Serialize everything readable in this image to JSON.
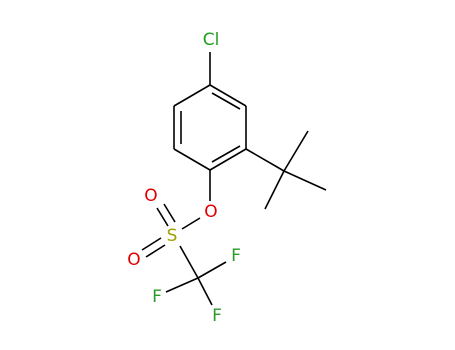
{
  "atoms": [
    {
      "label": "Cl"
    },
    {
      "label": "O"
    },
    {
      "label": "S"
    },
    {
      "label": "O"
    },
    {
      "label": "O"
    },
    {
      "label": "F"
    },
    {
      "label": "F"
    },
    {
      "label": "F"
    }
  ]
}
